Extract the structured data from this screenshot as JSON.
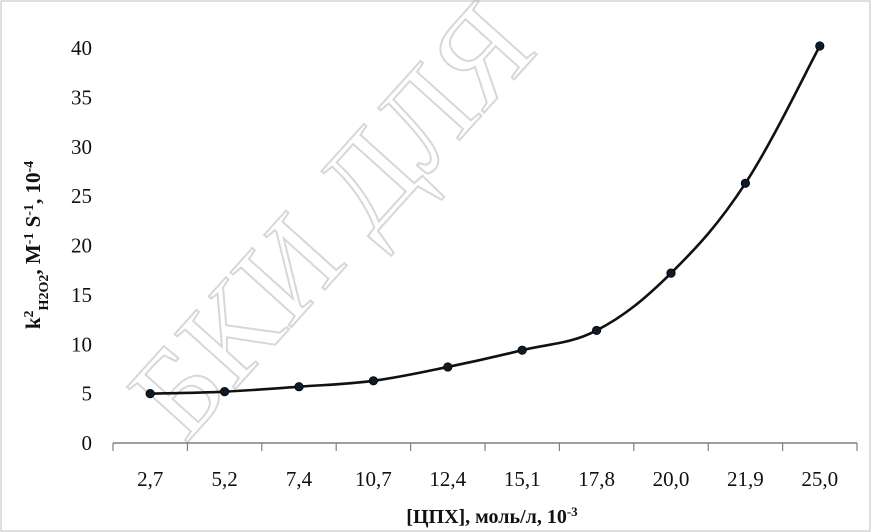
{
  "chart_data": {
    "type": "line",
    "categories": [
      "2,7",
      "5,2",
      "7,4",
      "10,7",
      "12,4",
      "15,1",
      "17,8",
      "20,0",
      "21,9",
      "25,0"
    ],
    "series": [
      {
        "values": [
          5.0,
          5.2,
          5.7,
          6.3,
          7.7,
          9.4,
          11.4,
          17.2,
          26.3,
          40.2
        ]
      }
    ],
    "xlabel": {
      "main": "[ЦПХ], моль/л, 10",
      "sup": "-3"
    },
    "ylabel": {
      "k": "k",
      "k_sup": "2",
      "k_sub": "H2O2",
      "rest1": ", M",
      "sup1": "-1",
      "rest2": " S",
      "sup2": "-1",
      "rest3": ", 10",
      "sup3": "-4"
    },
    "ylim": [
      0,
      40
    ],
    "yticks": [
      0,
      5,
      10,
      15,
      20,
      25,
      30,
      35,
      40
    ],
    "grid": false,
    "legend": "none",
    "watermark": "БКИ ДЛЯ",
    "colors": {
      "line": "#111111",
      "marker": "#0d1b2a",
      "axis": "#7f7f7f",
      "frame": "#bfbfbf"
    }
  }
}
